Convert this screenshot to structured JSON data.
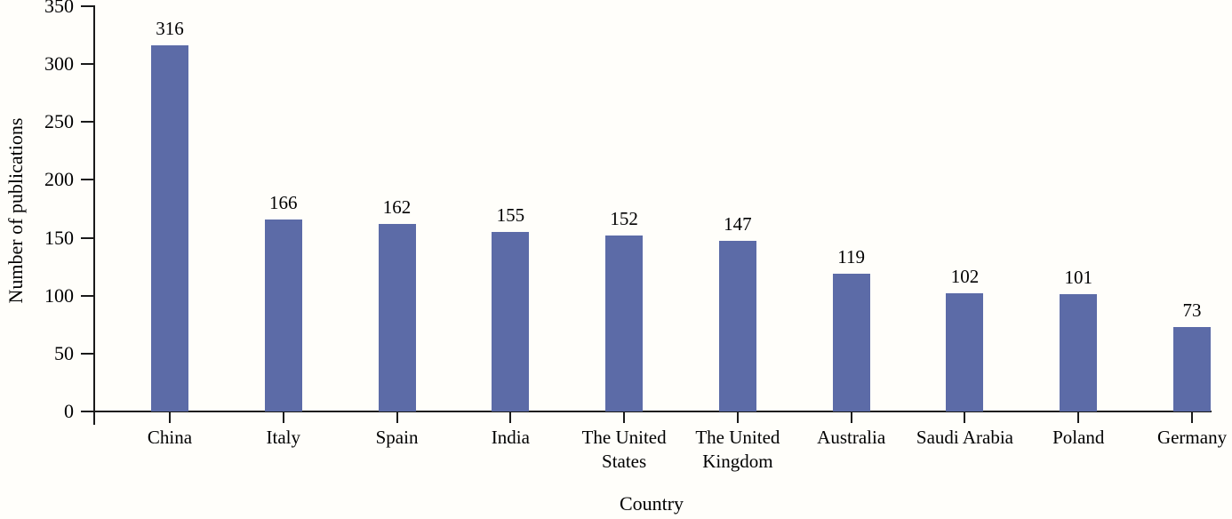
{
  "chart_data": {
    "type": "bar",
    "title": "",
    "xlabel": "Country",
    "ylabel": "Number of publications",
    "categories": [
      "China",
      "Italy",
      "Spain",
      "India",
      "The United States",
      "The United Kingdom",
      "Australia",
      "Saudi Arabia",
      "Poland",
      "Germany"
    ],
    "values": [
      316,
      166,
      162,
      155,
      152,
      147,
      119,
      102,
      101,
      73
    ],
    "value_labels": [
      "316",
      "166",
      "162",
      "155",
      "152",
      "147",
      "119",
      "102",
      "101",
      "73"
    ],
    "ylim": [
      0,
      350
    ],
    "yticks": [
      0,
      50,
      100,
      150,
      200,
      250,
      300,
      350
    ],
    "ytick_labels": [
      "0",
      "50",
      "100",
      "150",
      "200",
      "250",
      "300",
      "350"
    ],
    "grid": "off",
    "legend": "none",
    "bar_color": "#5C6BA7",
    "axis_color": "#1A1A1A",
    "text_color": "#000000",
    "background": "#FFFEFA"
  }
}
